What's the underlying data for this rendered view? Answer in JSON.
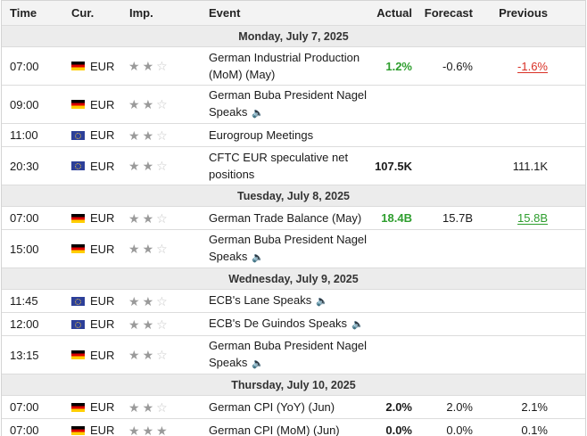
{
  "header": {
    "time": "Time",
    "currency": "Cur.",
    "importance": "Imp.",
    "event": "Event",
    "actual": "Actual",
    "forecast": "Forecast",
    "previous": "Previous"
  },
  "days": [
    {
      "date": "Monday, July 7, 2025",
      "events": [
        {
          "time": "07:00",
          "flag": "de",
          "currency": "EUR",
          "importance": 2,
          "event": "German Industrial Production (MoM) (May)",
          "speech": false,
          "actual": "1.2%",
          "actual_color": "green",
          "forecast": "-0.6%",
          "previous": "-1.6%",
          "previous_color": "red"
        },
        {
          "time": "09:00",
          "flag": "de",
          "currency": "EUR",
          "importance": 2,
          "event": "German Buba President Nagel Speaks",
          "speech": true,
          "actual": "",
          "forecast": "",
          "previous": ""
        },
        {
          "time": "11:00",
          "flag": "eu",
          "currency": "EUR",
          "importance": 2,
          "event": "Eurogroup Meetings",
          "speech": false,
          "actual": "",
          "forecast": "",
          "previous": ""
        },
        {
          "time": "20:30",
          "flag": "eu",
          "currency": "EUR",
          "importance": 2,
          "event": "CFTC EUR speculative net positions",
          "speech": false,
          "actual": "107.5K",
          "actual_color": "black",
          "forecast": "",
          "previous": "111.1K"
        }
      ]
    },
    {
      "date": "Tuesday, July 8, 2025",
      "events": [
        {
          "time": "07:00",
          "flag": "de",
          "currency": "EUR",
          "importance": 2,
          "event": "German Trade Balance (May)",
          "speech": false,
          "actual": "18.4B",
          "actual_color": "green",
          "forecast": "15.7B",
          "previous": "15.8B",
          "previous_color": "green"
        },
        {
          "time": "15:00",
          "flag": "de",
          "currency": "EUR",
          "importance": 2,
          "event": "German Buba President Nagel Speaks",
          "speech": true,
          "actual": "",
          "forecast": "",
          "previous": ""
        }
      ]
    },
    {
      "date": "Wednesday, July 9, 2025",
      "events": [
        {
          "time": "11:45",
          "flag": "eu",
          "currency": "EUR",
          "importance": 2,
          "event": "ECB's Lane Speaks",
          "speech": true,
          "actual": "",
          "forecast": "",
          "previous": ""
        },
        {
          "time": "12:00",
          "flag": "eu",
          "currency": "EUR",
          "importance": 2,
          "event": "ECB's De Guindos Speaks",
          "speech": true,
          "actual": "",
          "forecast": "",
          "previous": ""
        },
        {
          "time": "13:15",
          "flag": "de",
          "currency": "EUR",
          "importance": 2,
          "event": "German Buba President Nagel Speaks",
          "speech": true,
          "actual": "",
          "forecast": "",
          "previous": ""
        }
      ]
    },
    {
      "date": "Thursday, July 10, 2025",
      "events": [
        {
          "time": "07:00",
          "flag": "de",
          "currency": "EUR",
          "importance": 2,
          "event": "German CPI (YoY) (Jun)",
          "speech": false,
          "actual": "2.0%",
          "actual_color": "black",
          "forecast": "2.0%",
          "previous": "2.1%"
        },
        {
          "time": "07:00",
          "flag": "de",
          "currency": "EUR",
          "importance": 3,
          "event": "German CPI (MoM) (Jun)",
          "speech": false,
          "actual": "0.0%",
          "actual_color": "black",
          "forecast": "0.0%",
          "previous": "0.1%"
        }
      ]
    }
  ],
  "icons": {
    "star": "star-icon",
    "speaker": "speaker-icon"
  },
  "colors": {
    "green": "#2e9e2e",
    "red": "#d93025",
    "star_on": "#9a9a9a",
    "star_off": "#c6c6c6"
  }
}
